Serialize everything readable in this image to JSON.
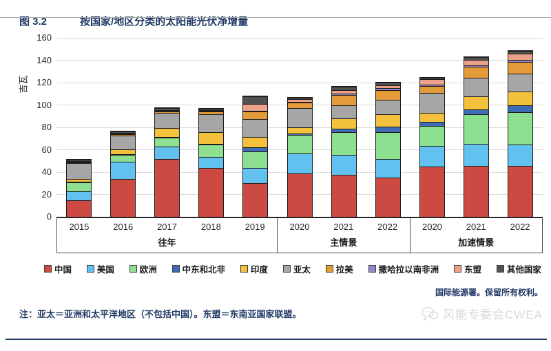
{
  "header": {
    "figure_label": "图 3.2",
    "title": "按国家/地区分类的太阳能光伏净增量"
  },
  "footer": {
    "source": "国际能源署。保留所有权利。",
    "note": "注：亚太＝亚洲和太平洋地区（不包括中国）。东盟＝东南亚国家联盟。",
    "watermark": "风能专委会CWEA"
  },
  "colors": {
    "accent_navy": "#1F3864",
    "gridline": "#D9D9D9",
    "bar_outline": "#1D1D1D",
    "axis_text": "#262626"
  },
  "chart_data": {
    "type": "bar",
    "stacked": true,
    "title": "按国家/地区分类的太阳能光伏净增量",
    "xlabel": "",
    "ylabel": "吉瓦",
    "ylim": [
      0,
      160
    ],
    "ytick_interval": 20,
    "grid": true,
    "legend_position": "bottom",
    "categories": [
      "2015",
      "2016",
      "2017",
      "2018",
      "2019",
      "2020",
      "2021",
      "2022",
      "2020",
      "2021",
      "2022"
    ],
    "groups": [
      {
        "label": "往年",
        "years": [
          "2015",
          "2016",
          "2017",
          "2018",
          "2019"
        ]
      },
      {
        "label": "主情景",
        "years": [
          "2020",
          "2021",
          "2022"
        ]
      },
      {
        "label": "加速情景",
        "years": [
          "2020",
          "2021",
          "2022"
        ]
      }
    ],
    "series": [
      {
        "name": "中国",
        "color": "#CD4A42",
        "values": [
          15,
          34,
          52,
          44,
          30,
          39,
          37.5,
          35,
          45,
          45.5,
          45.5
        ]
      },
      {
        "name": "美国",
        "color": "#62C2EF",
        "values": [
          7.5,
          15,
          10.5,
          9.5,
          14,
          17.5,
          18,
          17,
          18.5,
          20,
          19
        ]
      },
      {
        "name": "欧洲",
        "color": "#8CE08F",
        "values": [
          8.5,
          6.5,
          8.5,
          11,
          14.5,
          17,
          20,
          24,
          18,
          26,
          29
        ]
      },
      {
        "name": "中东和北非",
        "color": "#3E6DB5",
        "values": [
          0.4,
          0.4,
          0.7,
          1,
          3.5,
          1,
          3.5,
          4.5,
          3.5,
          4.5,
          6.5
        ]
      },
      {
        "name": "印度",
        "color": "#F3C13C",
        "values": [
          2,
          4.5,
          8,
          10.5,
          9.5,
          5.5,
          9,
          11.5,
          8,
          12,
          12
        ]
      },
      {
        "name": "亚太",
        "color": "#A6A6A6",
        "values": [
          14.5,
          12,
          13,
          15.5,
          16,
          17,
          12,
          12.5,
          17.5,
          16.5,
          16
        ]
      },
      {
        "name": "拉美",
        "color": "#E39A38",
        "values": [
          0.6,
          1.2,
          1.5,
          2.5,
          6.5,
          5,
          9,
          9,
          6.5,
          9.5,
          10.5
        ]
      },
      {
        "name": "撒哈拉以南非洲",
        "color": "#9186C9",
        "values": [
          0.2,
          0.2,
          0.3,
          0.3,
          0.5,
          0.5,
          1,
          1.5,
          1,
          1.5,
          2
        ]
      },
      {
        "name": "东盟",
        "color": "#EBA288",
        "values": [
          0.3,
          0.3,
          0.5,
          0.7,
          6.5,
          2.5,
          3.5,
          2.5,
          5,
          5,
          5.5
        ]
      },
      {
        "name": "其他国家",
        "color": "#515151",
        "values": [
          1,
          1.4,
          1.7,
          1.5,
          6.5,
          1.5,
          3,
          2.5,
          1.5,
          2,
          2.5
        ]
      }
    ]
  }
}
